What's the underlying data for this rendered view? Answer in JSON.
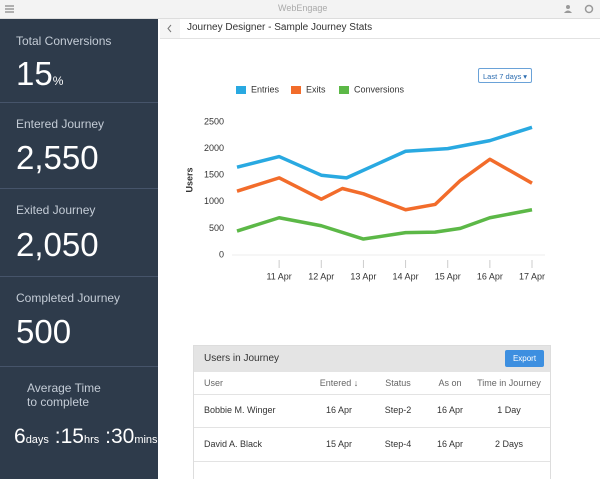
{
  "topbar": {
    "logo": "WebEngage"
  },
  "header": {
    "title": "Journey Designer - Sample Journey Stats"
  },
  "stats": [
    {
      "label": "Total Conversions",
      "value": "15",
      "unit": "%"
    },
    {
      "label": "Entered Journey",
      "value": "2,550"
    },
    {
      "label": "Exited Journey",
      "value": "2,050"
    },
    {
      "label": "Completed Journey",
      "value": "500"
    }
  ],
  "avg_time": {
    "label_1": "Average Time",
    "label_2": "to complete",
    "days": "6",
    "days_unit": "days",
    "separator": ":",
    "hours": "15",
    "hours_unit": "hrs",
    "minutes": "30",
    "minutes_unit": "mins"
  },
  "range_select": "Last 7 days",
  "chart_data": {
    "type": "line",
    "ylabel": "Users",
    "xlim": [
      10,
      17
    ],
    "xticks": [
      {
        "value": 11,
        "label": "11 Apr"
      },
      {
        "value": 12,
        "label": "12 Apr"
      },
      {
        "value": 13,
        "label": "13 Apr"
      },
      {
        "value": 14,
        "label": "14 Apr"
      },
      {
        "value": 15,
        "label": "15 Apr"
      },
      {
        "value": 16,
        "label": "16 Apr"
      },
      {
        "value": 17,
        "label": "17 Apr"
      }
    ],
    "ylim": [
      0,
      2500
    ],
    "yticks": [
      0,
      500,
      1000,
      1500,
      2000,
      2500
    ],
    "grid": false,
    "legend": "top",
    "series": [
      {
        "name": "Entries",
        "color": "#29a9e1",
        "x": [
          10,
          11,
          12,
          12.6,
          14,
          15,
          16,
          17
        ],
        "values": [
          1650,
          1850,
          1500,
          1450,
          1950,
          2000,
          2150,
          2400
        ]
      },
      {
        "name": "Exits",
        "color": "#f26c2b",
        "x": [
          10,
          11,
          12,
          12.5,
          13,
          14,
          14.7,
          15.3,
          16,
          17
        ],
        "values": [
          1200,
          1450,
          1050,
          1250,
          1150,
          850,
          950,
          1400,
          1800,
          1350
        ]
      },
      {
        "name": "Conversions",
        "color": "#5cb847",
        "x": [
          10,
          11,
          12,
          13,
          14,
          14.7,
          15.3,
          16,
          17
        ],
        "values": [
          450,
          700,
          550,
          300,
          420,
          430,
          500,
          700,
          850
        ]
      }
    ]
  },
  "table": {
    "title": "Users in Journey",
    "button": "Export",
    "columns": [
      "User",
      "Entered ↓",
      "Status",
      "As on",
      "Time in Journey"
    ],
    "rows": [
      [
        "Bobbie M. Winger",
        "16 Apr",
        "Step-2",
        "16 Apr",
        "1 Day"
      ],
      [
        "David A. Black",
        "15 Apr",
        "Step-4",
        "16 Apr",
        "2 Days"
      ]
    ]
  }
}
